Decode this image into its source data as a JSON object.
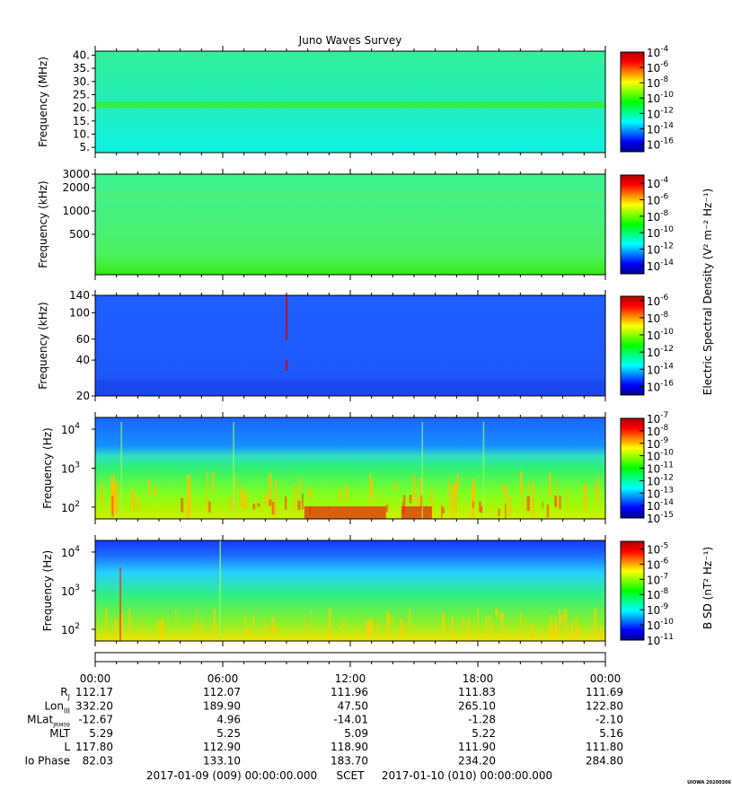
{
  "title": "Juno Waves Survey",
  "colors": {
    "jet": [
      "#00008f",
      "#0000ff",
      "#0080ff",
      "#00ffff",
      "#00ff80",
      "#00ff00",
      "#80ff00",
      "#ffff00",
      "#ff8000",
      "#ff0000",
      "#b00000"
    ]
  },
  "chart_data": [
    {
      "type": "heatmap",
      "name": "panel-1",
      "ylabel": "Frequency (MHz)",
      "yticks": [
        "40.",
        "35.",
        "30.",
        "25.",
        "20.",
        "15.",
        "10.",
        "5."
      ],
      "ytick_values": [
        40,
        35,
        30,
        25,
        20,
        15,
        10,
        5
      ],
      "ylim": [
        3,
        41.5
      ],
      "yscale": "linear",
      "colorbar_ticks": [
        "-4",
        "-6",
        "-8",
        "-10",
        "-12",
        "-14",
        "-16"
      ],
      "colorbar_range": [
        -17,
        -4
      ],
      "colorbar_label": ""
    },
    {
      "type": "heatmap",
      "name": "panel-2",
      "ylabel": "Frequency (kHz)",
      "yticks": [
        "3000",
        "2000",
        "1000",
        "500"
      ],
      "ytick_values": [
        3000,
        2000,
        1000,
        500
      ],
      "ylim": [
        150,
        3000
      ],
      "yscale": "log",
      "colorbar_ticks": [
        "-4",
        "-6",
        "-8",
        "-10",
        "-12",
        "-14"
      ],
      "colorbar_range": [
        -15,
        -3
      ],
      "colorbar_label": ""
    },
    {
      "type": "heatmap",
      "name": "panel-3",
      "ylabel": "Frequency (kHz)",
      "yticks": [
        "140",
        "100",
        "60",
        "40",
        "20"
      ],
      "ytick_values": [
        140,
        100,
        60,
        40,
        20
      ],
      "ylim": [
        20,
        140
      ],
      "yscale": "log",
      "colorbar_ticks": [
        "-6",
        "-8",
        "-10",
        "-12",
        "-14",
        "-16"
      ],
      "colorbar_range": [
        -17,
        -5.5
      ],
      "colorbar_label": ""
    },
    {
      "type": "heatmap",
      "name": "panel-4",
      "ylabel": "Frequency (Hz)",
      "yticks": [
        "4",
        "3",
        "2"
      ],
      "ytick_values": [
        10000,
        1000,
        100
      ],
      "ylim": [
        50,
        20000
      ],
      "yscale": "log",
      "colorbar_ticks": [
        "-7",
        "-8",
        "-9",
        "-10",
        "-11",
        "-12",
        "-13",
        "-14",
        "-15"
      ],
      "colorbar_range": [
        -15,
        -7
      ],
      "colorbar_label": ""
    },
    {
      "type": "heatmap",
      "name": "panel-5",
      "ylabel": "Frequency (Hz)",
      "yticks": [
        "4",
        "3",
        "2"
      ],
      "ytick_values": [
        10000,
        1000,
        100
      ],
      "ylim": [
        50,
        20000
      ],
      "yscale": "log",
      "colorbar_ticks": [
        "-5",
        "-6",
        "-7",
        "-8",
        "-9",
        "-10",
        "-11"
      ],
      "colorbar_range": [
        -11,
        -4.5
      ],
      "colorbar_label": ""
    }
  ],
  "colorbar_labels": {
    "electric": "Electric Spectral Density (V² m⁻² Hz⁻¹)",
    "magnetic": "B SD (nT² Hz⁻¹)"
  },
  "time_axis": {
    "tick_labels": [
      "00:00",
      "06:00",
      "12:00",
      "18:00",
      "00:00"
    ],
    "xlim_hours": [
      0,
      24
    ]
  },
  "ephemeris": {
    "rows": [
      {
        "label": "R",
        "sub": "J",
        "values": [
          "112.17",
          "112.07",
          "111.96",
          "111.83",
          "111.69"
        ]
      },
      {
        "label": "Lon",
        "sub": "III",
        "values": [
          "332.20",
          "189.90",
          "47.50",
          "265.10",
          "122.80"
        ]
      },
      {
        "label": "MLat",
        "sub": "JRM09",
        "values": [
          "-12.67",
          "4.96",
          "-14.01",
          "-1.28",
          "-2.10"
        ]
      },
      {
        "label": "MLT",
        "sub": "",
        "values": [
          "5.29",
          "5.25",
          "5.09",
          "5.22",
          "5.16"
        ]
      },
      {
        "label": "L",
        "sub": "",
        "values": [
          "117.80",
          "112.90",
          "118.90",
          "111.90",
          "111.80"
        ]
      },
      {
        "label": "Io Phase",
        "sub": "",
        "values": [
          "82.03",
          "133.10",
          "183.70",
          "234.20",
          "284.80"
        ]
      }
    ]
  },
  "footer": {
    "start": "2017-01-09 (009) 00:00:00.000",
    "scet": "SCET",
    "end": "2017-01-10 (010) 00:00:00.000",
    "stamp": "UIOWA 20200306"
  }
}
